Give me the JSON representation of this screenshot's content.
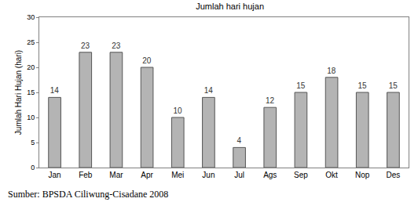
{
  "chart_data": {
    "type": "bar",
    "title": "Jumlah hari hujan",
    "y_label": "Jumlah Hari Hujan (hari)",
    "categories": [
      "Jan",
      "Feb",
      "Mar",
      "Apr",
      "Mei",
      "Jun",
      "Jul",
      "Ags",
      "Sep",
      "Okt",
      "Nop",
      "Des"
    ],
    "values": [
      14,
      23,
      23,
      20,
      10,
      14,
      4,
      12,
      15,
      18,
      15,
      15
    ],
    "color": "#b4b4b4",
    "ylim": [
      0,
      30
    ],
    "yticks": [
      0,
      5,
      10,
      15,
      20,
      25,
      30
    ],
    "grid": false,
    "data_labels": true,
    "annotations": [
      "Sumber: BPSDA Ciliwung-Cisadane 2008"
    ]
  }
}
